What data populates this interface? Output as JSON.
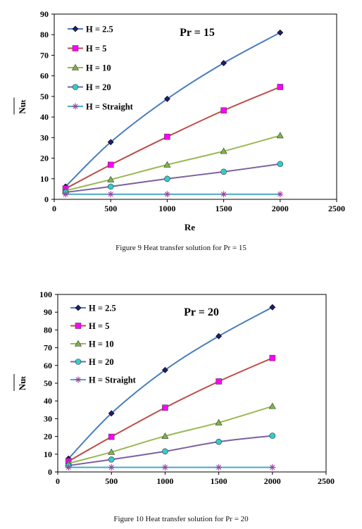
{
  "chart_data": [
    {
      "type": "line",
      "title": "Pr = 15",
      "xlabel": "Re",
      "ylabel": "Nuₜ",
      "xlim": [
        0,
        2500
      ],
      "ylim": [
        0,
        90
      ],
      "xticks": [
        0,
        500,
        1000,
        1500,
        2000,
        2500
      ],
      "yticks": [
        0,
        10,
        20,
        30,
        40,
        50,
        60,
        70,
        80,
        90
      ],
      "grid": false,
      "legend": "top-left",
      "x": [
        100,
        500,
        1000,
        1500,
        2000
      ],
      "series": [
        {
          "name": "H = 2.5",
          "values": [
            6.2,
            27.8,
            48.8,
            66.2,
            81.0
          ],
          "color": "#4a7ebb",
          "marker": "diamond",
          "marker_color": "#1f1f6b"
        },
        {
          "name": "H = 5",
          "values": [
            5.2,
            16.8,
            30.4,
            43.2,
            54.6
          ],
          "color": "#be4b48",
          "marker": "square",
          "marker_color": "#ff00ff"
        },
        {
          "name": "H = 10",
          "values": [
            4.2,
            9.6,
            16.8,
            23.4,
            31.0
          ],
          "color": "#98b954",
          "marker": "triangle",
          "marker_color": "#7ab648"
        },
        {
          "name": "H = 20",
          "values": [
            3.4,
            6.2,
            10.0,
            13.4,
            17.2
          ],
          "color": "#7d60a0",
          "marker": "circle",
          "marker_color": "#33cccc"
        },
        {
          "name": "H = Straight",
          "values": [
            2.5,
            2.5,
            2.5,
            2.5,
            2.5
          ],
          "color": "#46aac5",
          "marker": "star",
          "marker_color": "#a040a0"
        }
      ],
      "caption": "Figure 9 Heat transfer solution for Pr = 15"
    },
    {
      "type": "line",
      "title": "Pr = 20",
      "xlabel": "Re",
      "ylabel": "Nuₜ",
      "xlim": [
        0,
        2500
      ],
      "ylim": [
        0,
        100
      ],
      "xticks": [
        0,
        500,
        1000,
        1500,
        2000,
        2500
      ],
      "yticks": [
        0,
        10,
        20,
        30,
        40,
        50,
        60,
        70,
        80,
        90,
        100
      ],
      "grid": false,
      "legend": "top-left",
      "x": [
        100,
        500,
        1000,
        1500,
        2000
      ],
      "series": [
        {
          "name": "H = 2.5",
          "values": [
            7.5,
            33.0,
            57.4,
            76.5,
            92.8
          ],
          "color": "#4a7ebb",
          "marker": "diamond",
          "marker_color": "#1f1f6b"
        },
        {
          "name": "H = 5",
          "values": [
            6.0,
            19.8,
            36.2,
            51.0,
            64.2
          ],
          "color": "#be4b48",
          "marker": "square",
          "marker_color": "#ff00ff"
        },
        {
          "name": "H = 10",
          "values": [
            4.8,
            11.2,
            20.2,
            27.8,
            37.0
          ],
          "color": "#98b954",
          "marker": "triangle",
          "marker_color": "#7ab648"
        },
        {
          "name": "H = 20",
          "values": [
            3.6,
            7.0,
            11.6,
            17.0,
            20.4
          ],
          "color": "#7d60a0",
          "marker": "circle",
          "marker_color": "#33cccc"
        },
        {
          "name": "H = Straight",
          "values": [
            2.6,
            2.6,
            2.6,
            2.6,
            2.6
          ],
          "color": "#46aac5",
          "marker": "star",
          "marker_color": "#a040a0"
        }
      ],
      "caption": "Figure 10 Heat transfer solution for Pr = 20"
    }
  ]
}
